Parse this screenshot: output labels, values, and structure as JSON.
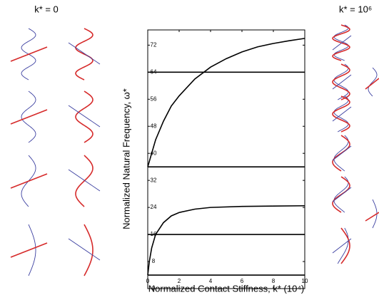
{
  "chart_data": {
    "type": "line",
    "left_label": "k* = 0",
    "right_label": "k* = 10⁶",
    "x_label": "Normalized Contact Stiffness, k* (10⁴)",
    "y_label": "Normalized Natural Frequency, ω*",
    "xlim": [
      0,
      10
    ],
    "xticks": [
      0,
      2,
      4,
      6,
      8,
      10
    ],
    "ylim": [
      0,
      76.5
    ],
    "yticks": [
      0,
      8,
      16,
      24,
      32,
      40,
      48,
      56,
      64,
      72
    ],
    "series": [
      {
        "color": "#000000",
        "x": [
          0,
          10
        ],
        "values": [
          4,
          4
        ]
      },
      {
        "color": "#000000",
        "x": [
          0,
          10
        ],
        "values": [
          16,
          16
        ]
      },
      {
        "color": "#000000",
        "x": [
          0,
          10
        ],
        "values": [
          36,
          36
        ]
      },
      {
        "color": "#000000",
        "x": [
          0,
          10
        ],
        "values": [
          64,
          64
        ]
      },
      {
        "color": "#000000",
        "x": [
          0,
          0.25,
          0.5,
          1,
          1.5,
          2,
          3,
          4,
          5,
          6,
          7,
          8,
          9,
          10
        ],
        "values": [
          36,
          40,
          44,
          49.5,
          54,
          57,
          62,
          65.5,
          68,
          70,
          71.5,
          72.5,
          73.3,
          74
        ]
      },
      {
        "color": "#000000",
        "x": [
          0,
          0.1,
          0.25,
          0.5,
          1,
          1.5,
          2,
          3,
          4,
          6,
          8,
          10
        ],
        "values": [
          4,
          8,
          12,
          16,
          19.5,
          21.5,
          22.5,
          23.5,
          24,
          24.3,
          24.4,
          24.5
        ]
      }
    ]
  }
}
